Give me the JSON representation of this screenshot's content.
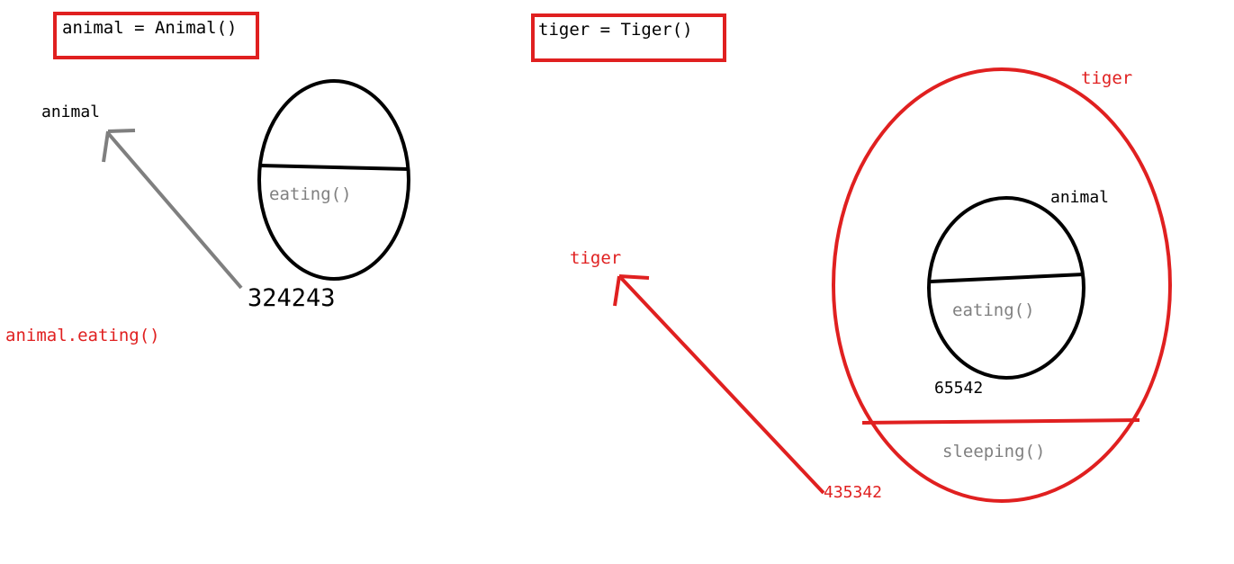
{
  "colors": {
    "red": "#e02020",
    "black": "#000000",
    "gray": "#7f7f7f",
    "method_gray": "#808080"
  },
  "left": {
    "code": "animal = Animal()",
    "variable_label": "animal",
    "method_label": "eating()",
    "address": "324243",
    "call_label": "animal.eating()"
  },
  "right": {
    "code": "tiger = Tiger()",
    "outer_label": "tiger",
    "variable_label": "tiger",
    "inner_label": "animal",
    "inner_method": "eating()",
    "inner_address": "65542",
    "outer_method": "sleeping()",
    "address": "435342"
  }
}
